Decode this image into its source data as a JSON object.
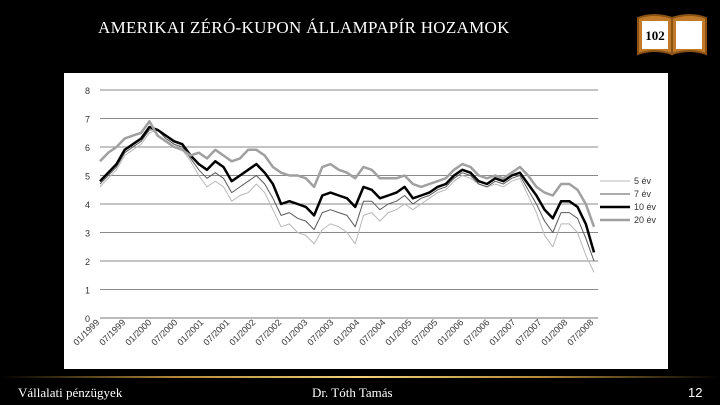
{
  "slide": {
    "title": "Amerikai zéró-kupon állampapír hozamok",
    "badge_number": "102",
    "footer_left": "Vállalati pénzügyek",
    "footer_center": "Dr. Tóth Tamás",
    "page_number": "12"
  },
  "chart_data": {
    "type": "line",
    "title": "",
    "xlabel": "",
    "ylabel": "",
    "ylim": [
      0,
      8
    ],
    "yticks": [
      "0",
      "1",
      "2",
      "3",
      "4",
      "5",
      "6",
      "7",
      "8"
    ],
    "xtick_labels": [
      "01/1999",
      "07/1999",
      "01/2000",
      "07/2000",
      "01/2001",
      "07/2001",
      "01/2002",
      "07/2002",
      "01/2003",
      "07/2003",
      "01/2004",
      "07/2004",
      "01/2005",
      "07/2005",
      "01/2006",
      "07/2006",
      "01/2007",
      "07/2007",
      "01/2008",
      "07/2008"
    ],
    "grid": "horizontal",
    "legend_position": "right",
    "x": [
      "1999-01",
      "1999-03",
      "1999-05",
      "1999-07",
      "1999-09",
      "1999-11",
      "2000-01",
      "2000-03",
      "2000-05",
      "2000-07",
      "2000-09",
      "2000-11",
      "2001-01",
      "2001-03",
      "2001-05",
      "2001-07",
      "2001-09",
      "2001-11",
      "2002-01",
      "2002-03",
      "2002-05",
      "2002-07",
      "2002-09",
      "2002-11",
      "2003-01",
      "2003-03",
      "2003-05",
      "2003-07",
      "2003-09",
      "2003-11",
      "2004-01",
      "2004-03",
      "2004-05",
      "2004-07",
      "2004-09",
      "2004-11",
      "2005-01",
      "2005-03",
      "2005-05",
      "2005-07",
      "2005-09",
      "2005-11",
      "2006-01",
      "2006-03",
      "2006-05",
      "2006-07",
      "2006-09",
      "2006-11",
      "2007-01",
      "2007-03",
      "2007-05",
      "2007-07",
      "2007-09",
      "2007-11",
      "2008-01",
      "2008-03",
      "2008-05",
      "2008-07",
      "2008-09",
      "2008-11",
      "2008-12"
    ],
    "series": [
      {
        "name": "5 év",
        "color": "#b8b8b8",
        "width": 1,
        "values": [
          4.6,
          4.9,
          5.2,
          5.7,
          5.9,
          6.1,
          6.5,
          6.6,
          6.3,
          6.1,
          5.9,
          5.5,
          5.0,
          4.6,
          4.8,
          4.6,
          4.1,
          4.3,
          4.4,
          4.7,
          4.4,
          3.8,
          3.2,
          3.3,
          3.0,
          2.9,
          2.6,
          3.1,
          3.3,
          3.2,
          3.0,
          2.6,
          3.6,
          3.7,
          3.4,
          3.7,
          3.8,
          4.0,
          3.8,
          4.0,
          4.2,
          4.4,
          4.5,
          4.8,
          5.0,
          4.9,
          4.7,
          4.6,
          4.7,
          4.6,
          4.8,
          4.9,
          4.3,
          3.7,
          2.9,
          2.5,
          3.3,
          3.3,
          3.0,
          2.2,
          1.6
        ]
      },
      {
        "name": "7 év",
        "color": "#5a5a5a",
        "width": 1,
        "values": [
          4.7,
          5.0,
          5.3,
          5.8,
          6.0,
          6.2,
          6.6,
          6.6,
          6.3,
          6.1,
          6.0,
          5.6,
          5.2,
          4.9,
          5.1,
          4.9,
          4.4,
          4.6,
          4.8,
          5.0,
          4.7,
          4.2,
          3.6,
          3.7,
          3.5,
          3.4,
          3.1,
          3.7,
          3.8,
          3.7,
          3.6,
          3.2,
          4.1,
          4.1,
          3.8,
          4.0,
          4.1,
          4.3,
          4.0,
          4.2,
          4.3,
          4.5,
          4.6,
          4.9,
          5.1,
          5.0,
          4.7,
          4.6,
          4.8,
          4.7,
          4.9,
          5.0,
          4.5,
          4.0,
          3.4,
          3.0,
          3.7,
          3.7,
          3.5,
          2.8,
          2.0
        ]
      },
      {
        "name": "10 év",
        "color": "#000000",
        "width": 2.5,
        "values": [
          4.8,
          5.1,
          5.4,
          5.9,
          6.1,
          6.3,
          6.7,
          6.6,
          6.4,
          6.2,
          6.1,
          5.7,
          5.4,
          5.2,
          5.5,
          5.3,
          4.8,
          5.0,
          5.2,
          5.4,
          5.1,
          4.7,
          4.0,
          4.1,
          4.0,
          3.9,
          3.6,
          4.3,
          4.4,
          4.3,
          4.2,
          3.9,
          4.6,
          4.5,
          4.2,
          4.3,
          4.4,
          4.6,
          4.2,
          4.3,
          4.4,
          4.6,
          4.7,
          5.0,
          5.2,
          5.1,
          4.8,
          4.7,
          4.9,
          4.8,
          5.0,
          5.1,
          4.7,
          4.3,
          3.8,
          3.5,
          4.1,
          4.1,
          3.9,
          3.3,
          2.3
        ]
      },
      {
        "name": "20 év",
        "color": "#a0a0a0",
        "width": 2.5,
        "values": [
          5.5,
          5.8,
          6.0,
          6.3,
          6.4,
          6.5,
          6.9,
          6.4,
          6.2,
          6.0,
          5.9,
          5.7,
          5.8,
          5.6,
          5.9,
          5.7,
          5.5,
          5.6,
          5.9,
          5.9,
          5.7,
          5.3,
          5.1,
          5.0,
          5.0,
          4.9,
          4.6,
          5.3,
          5.4,
          5.2,
          5.1,
          4.9,
          5.3,
          5.2,
          4.9,
          4.9,
          4.9,
          5.0,
          4.7,
          4.6,
          4.7,
          4.8,
          4.9,
          5.2,
          5.4,
          5.3,
          5.0,
          4.9,
          5.0,
          4.9,
          5.1,
          5.3,
          5.0,
          4.6,
          4.4,
          4.3,
          4.7,
          4.7,
          4.5,
          4.0,
          3.2
        ]
      }
    ]
  }
}
